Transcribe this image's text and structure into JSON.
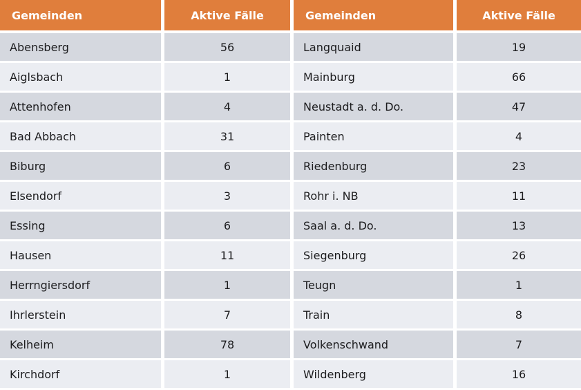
{
  "table": {
    "headers": [
      "Gemeinden",
      "Aktive Fälle",
      "Gemeinden",
      "Aktive Fälle"
    ],
    "rows": [
      [
        "Abensberg",
        "56",
        "Langquaid",
        "19"
      ],
      [
        "Aiglsbach",
        "1",
        "Mainburg",
        "66"
      ],
      [
        "Attenhofen",
        "4",
        "Neustadt a. d. Do.",
        "47"
      ],
      [
        "Bad Abbach",
        "31",
        "Painten",
        "4"
      ],
      [
        "Biburg",
        "6",
        "Riedenburg",
        "23"
      ],
      [
        "Elsendorf",
        "3",
        "Rohr i. NB",
        "11"
      ],
      [
        "Essing",
        "6",
        "Saal a. d. Do.",
        "13"
      ],
      [
        "Hausen",
        "11",
        "Siegenburg",
        "26"
      ],
      [
        "Herrngiersdorf",
        "1",
        "Teugn",
        "1"
      ],
      [
        "Ihrlerstein",
        "7",
        "Train",
        "8"
      ],
      [
        "Kelheim",
        "78",
        "Volkenschwand",
        "7"
      ],
      [
        "Kirchdorf",
        "1",
        "Wildenberg",
        "16"
      ]
    ]
  },
  "chart_data": {
    "type": "table",
    "columns": [
      "Gemeinden",
      "Aktive Fälle",
      "Gemeinden",
      "Aktive Fälle"
    ],
    "records": [
      {
        "gemeinde": "Abensberg",
        "aktive_faelle": 56
      },
      {
        "gemeinde": "Aiglsbach",
        "aktive_faelle": 1
      },
      {
        "gemeinde": "Attenhofen",
        "aktive_faelle": 4
      },
      {
        "gemeinde": "Bad Abbach",
        "aktive_faelle": 31
      },
      {
        "gemeinde": "Biburg",
        "aktive_faelle": 6
      },
      {
        "gemeinde": "Elsendorf",
        "aktive_faelle": 3
      },
      {
        "gemeinde": "Essing",
        "aktive_faelle": 6
      },
      {
        "gemeinde": "Hausen",
        "aktive_faelle": 11
      },
      {
        "gemeinde": "Herrngiersdorf",
        "aktive_faelle": 1
      },
      {
        "gemeinde": "Ihrlerstein",
        "aktive_faelle": 7
      },
      {
        "gemeinde": "Kelheim",
        "aktive_faelle": 78
      },
      {
        "gemeinde": "Kirchdorf",
        "aktive_faelle": 1
      },
      {
        "gemeinde": "Langquaid",
        "aktive_faelle": 19
      },
      {
        "gemeinde": "Mainburg",
        "aktive_faelle": 66
      },
      {
        "gemeinde": "Neustadt a. d. Do.",
        "aktive_faelle": 47
      },
      {
        "gemeinde": "Painten",
        "aktive_faelle": 4
      },
      {
        "gemeinde": "Riedenburg",
        "aktive_faelle": 23
      },
      {
        "gemeinde": "Rohr i. NB",
        "aktive_faelle": 11
      },
      {
        "gemeinde": "Saal a. d. Do.",
        "aktive_faelle": 13
      },
      {
        "gemeinde": "Siegenburg",
        "aktive_faelle": 26
      },
      {
        "gemeinde": "Teugn",
        "aktive_faelle": 1
      },
      {
        "gemeinde": "Train",
        "aktive_faelle": 8
      },
      {
        "gemeinde": "Volkenschwand",
        "aktive_faelle": 7
      },
      {
        "gemeinde": "Wildenberg",
        "aktive_faelle": 16
      }
    ]
  },
  "colors": {
    "header_bg": "#E07E3C",
    "header_text": "#FFFFFF",
    "row_odd_bg": "#D5D8DF",
    "row_even_bg": "#EBEDF2",
    "cell_text": "#1C1C1E"
  }
}
